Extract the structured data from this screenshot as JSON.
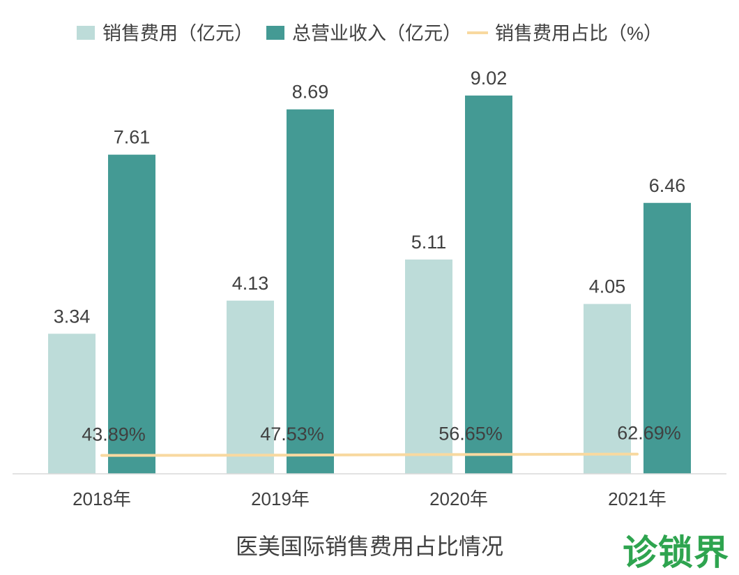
{
  "chart_data": {
    "type": "bar",
    "title": "",
    "categories": [
      "2018年",
      "2019年",
      "2020年",
      "2021年"
    ],
    "series": [
      {
        "name": "销售费用（亿元）",
        "type": "bar",
        "color": "#bddcd9",
        "values": [
          3.34,
          4.13,
          5.11,
          4.05
        ],
        "labels": [
          "3.34",
          "4.13",
          "5.11",
          "4.05"
        ]
      },
      {
        "name": "总营业收入（亿元）",
        "type": "bar",
        "color": "#449a94",
        "values": [
          7.61,
          8.69,
          9.02,
          6.46
        ],
        "labels": [
          "7.61",
          "8.69",
          "9.02",
          "6.46"
        ]
      },
      {
        "name": "销售费用占比（%）",
        "type": "line",
        "color": "#f8d9a0",
        "values": [
          43.89,
          47.53,
          56.65,
          62.69
        ],
        "labels": [
          "43.89%",
          "47.53%",
          "56.65%",
          "62.69%"
        ]
      }
    ],
    "ylim": [
      0,
      10
    ],
    "line_ylim": [
      0,
      1200
    ],
    "legend_position": "top",
    "grid": false
  },
  "caption": "医美国际销售费用占比情况",
  "watermark": "诊锁界"
}
